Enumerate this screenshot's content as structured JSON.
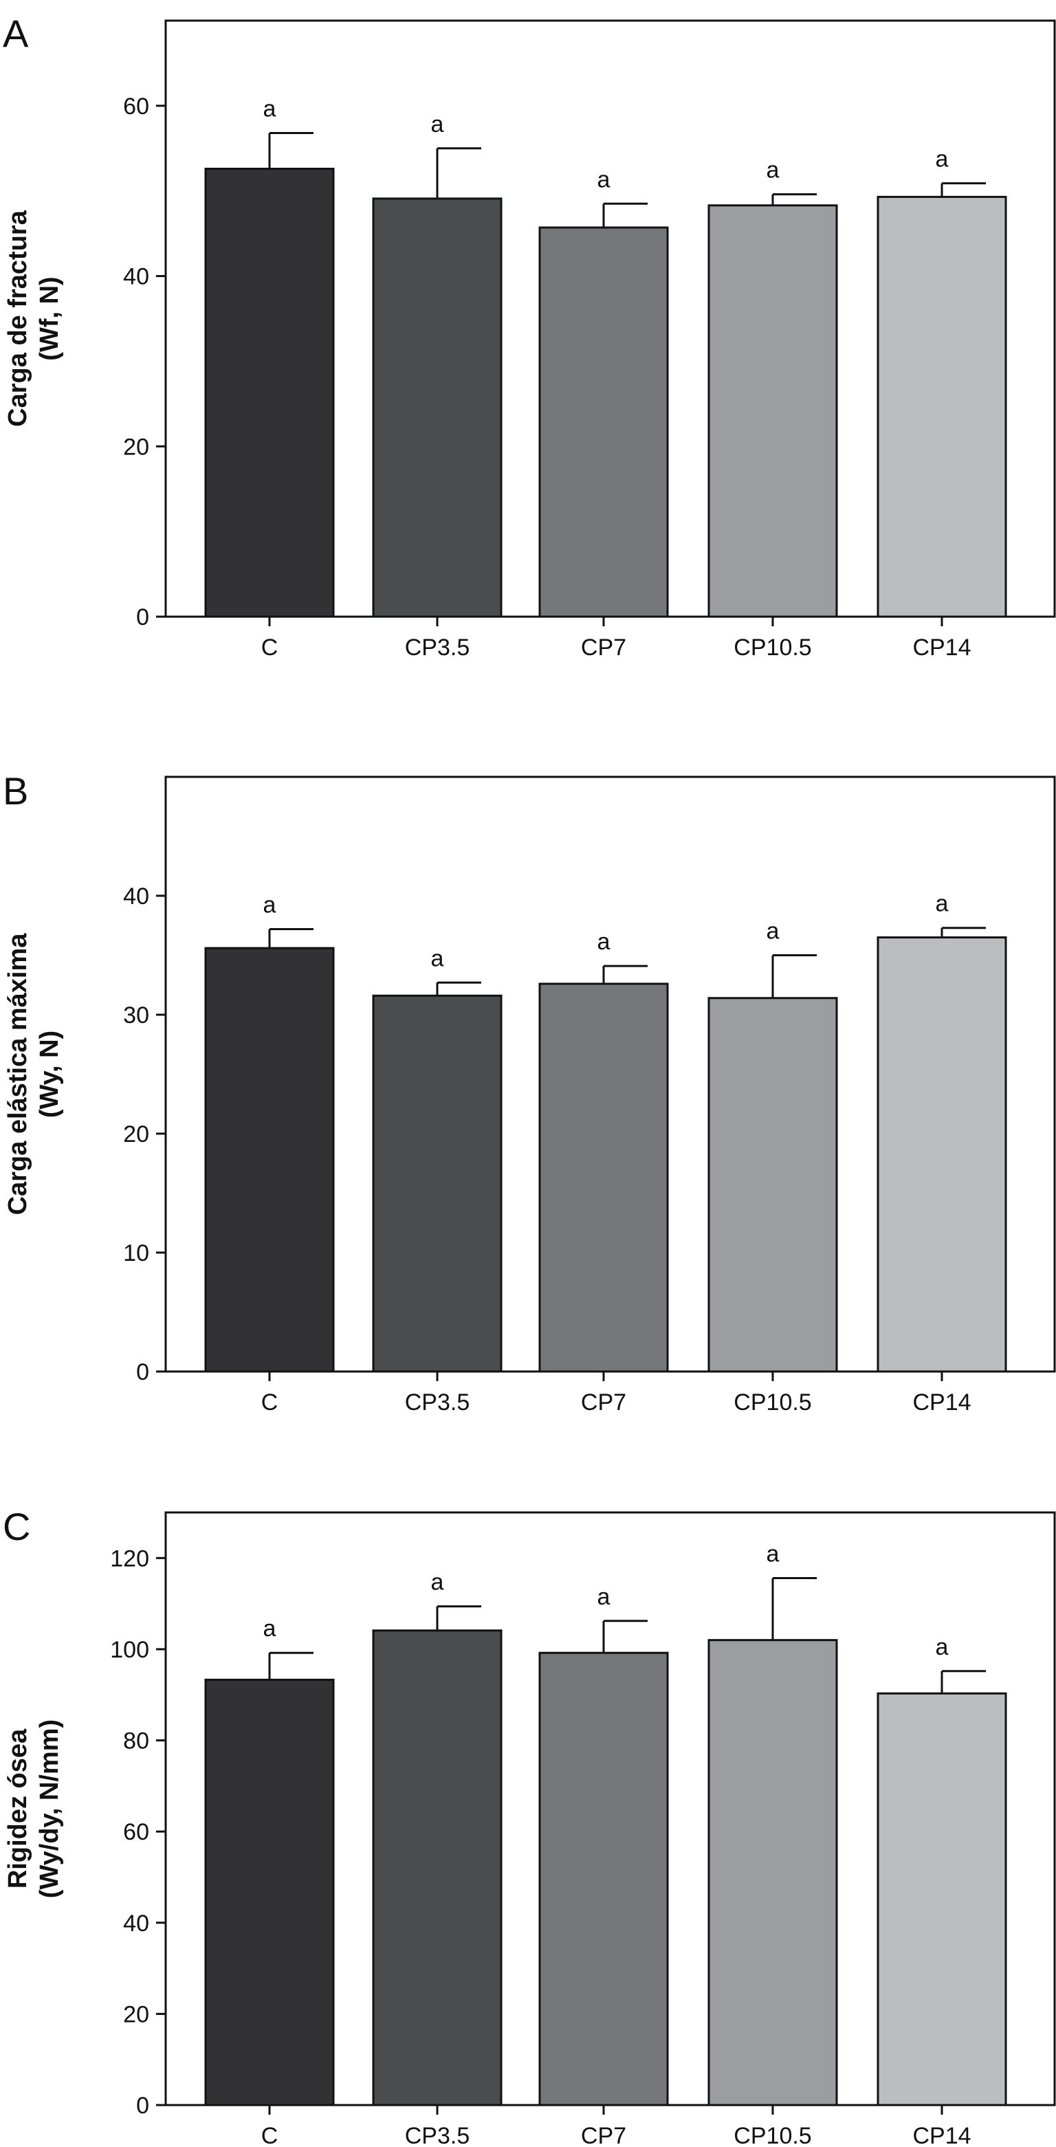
{
  "chart_data": [
    {
      "type": "bar",
      "panel": "A",
      "categories": [
        "C",
        "CP3.5",
        "CP7",
        "CP10.5",
        "CP14"
      ],
      "values": [
        52.6,
        49.1,
        45.7,
        48.3,
        49.3
      ],
      "errors": [
        4.2,
        5.9,
        2.8,
        1.3,
        1.6
      ],
      "significance": [
        "a",
        "a",
        "a",
        "a",
        "a"
      ],
      "colors": [
        "#323134",
        "#4b4c4e",
        "#76777b",
        "#9c9da1",
        "#bcbdbf"
      ],
      "ylabel_line1": "Carga de fractura",
      "ylabel_line2": "(Wf, N)",
      "ylim": [
        0,
        70
      ],
      "yticks": [
        0,
        20,
        40,
        60
      ]
    },
    {
      "type": "bar",
      "panel": "B",
      "categories": [
        "C",
        "CP3.5",
        "CP7",
        "CP10.5",
        "CP14"
      ],
      "values": [
        35.6,
        31.6,
        32.6,
        31.4,
        36.5
      ],
      "errors": [
        1.6,
        1.1,
        1.5,
        3.6,
        0.8
      ],
      "significance": [
        "a",
        "a",
        "a",
        "a",
        "a"
      ],
      "colors": [
        "#323134",
        "#4b4c4e",
        "#76777b",
        "#9c9da1",
        "#bcbdbf"
      ],
      "ylabel_line1": "Carga elástica máxima",
      "ylabel_line2": "(Wy, N)",
      "ylim": [
        0,
        50
      ],
      "yticks": [
        0,
        10,
        20,
        30,
        40
      ]
    },
    {
      "type": "bar",
      "panel": "C",
      "categories": [
        "C",
        "CP3.5",
        "CP7",
        "CP10.5",
        "CP14"
      ],
      "values": [
        93.3,
        104.1,
        99.2,
        102.0,
        90.3
      ],
      "errors": [
        5.9,
        5.3,
        7.0,
        13.6,
        4.9
      ],
      "significance": [
        "a",
        "a",
        "a",
        "a",
        "a"
      ],
      "colors": [
        "#323134",
        "#4b4c4e",
        "#76777b",
        "#9c9da1",
        "#bcbdbf"
      ],
      "ylabel_line1": "Rigidez ósea",
      "ylabel_line2": "(Wy/dy, N/mm)",
      "ylim": [
        0,
        130
      ],
      "yticks": [
        0,
        20,
        40,
        60,
        80,
        100,
        120
      ]
    }
  ]
}
